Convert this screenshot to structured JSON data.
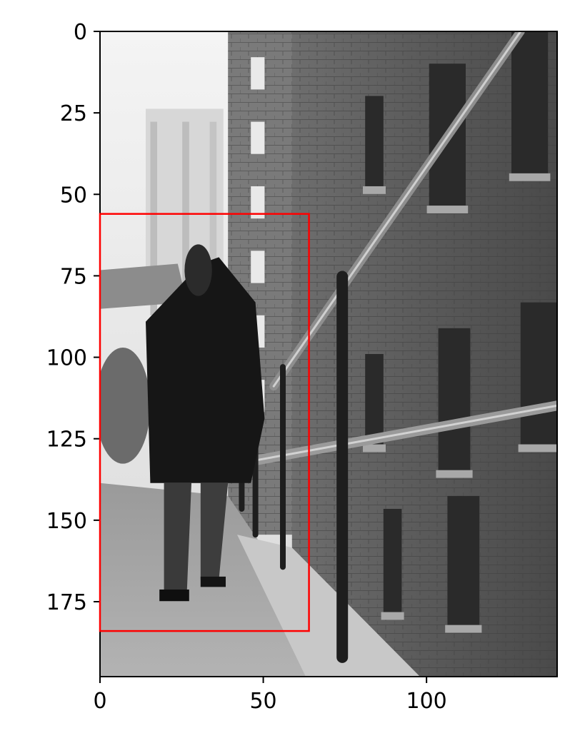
{
  "chart_data": {
    "type": "image",
    "x_ticks": [
      {
        "value": 0,
        "label": "0"
      },
      {
        "value": 50,
        "label": "50"
      },
      {
        "value": 100,
        "label": "100"
      }
    ],
    "y_ticks": [
      {
        "value": 0,
        "label": "0"
      },
      {
        "value": 25,
        "label": "25"
      },
      {
        "value": 50,
        "label": "50"
      },
      {
        "value": 75,
        "label": "75"
      },
      {
        "value": 100,
        "label": "100"
      },
      {
        "value": 125,
        "label": "125"
      },
      {
        "value": 150,
        "label": "150"
      },
      {
        "value": 175,
        "label": "175"
      }
    ],
    "xlim": [
      0,
      140
    ],
    "ylim": [
      198,
      0
    ],
    "grid": false,
    "bounding_box": {
      "x_min": 0,
      "y_min": 56,
      "x_max": 64,
      "y_max": 184,
      "color": "#ff0000"
    }
  }
}
